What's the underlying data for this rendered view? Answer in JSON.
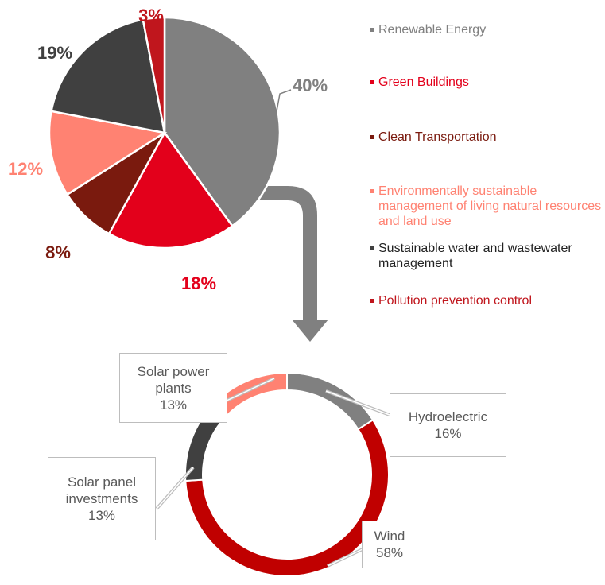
{
  "chart_data": [
    {
      "type": "pie",
      "categories": [
        "Renewable Energy",
        "Green Buildings",
        "Clean Transportation",
        "Environmentally sustainable management of living natural resources and land use",
        "Sustainable water and wastewater management",
        "Pollution prevention control"
      ],
      "values": [
        40,
        18,
        8,
        12,
        19,
        3
      ],
      "value_labels": [
        "40%",
        "18%",
        "8%",
        "12%",
        "19%",
        "3%"
      ],
      "colors": [
        "#808080",
        "#e3001b",
        "#7a1a0e",
        "#ff8272",
        "#404040",
        "#c0161d"
      ]
    },
    {
      "type": "donut",
      "categories": [
        "Hydroelectric",
        "Wind",
        "Solar panel investments",
        "Solar power plants"
      ],
      "values": [
        16,
        58,
        13,
        13
      ],
      "value_labels": [
        "16%",
        "58%",
        "13%",
        "13%"
      ],
      "colors": [
        "#808080",
        "#c00000",
        "#404040",
        "#ff8272"
      ]
    }
  ]
}
